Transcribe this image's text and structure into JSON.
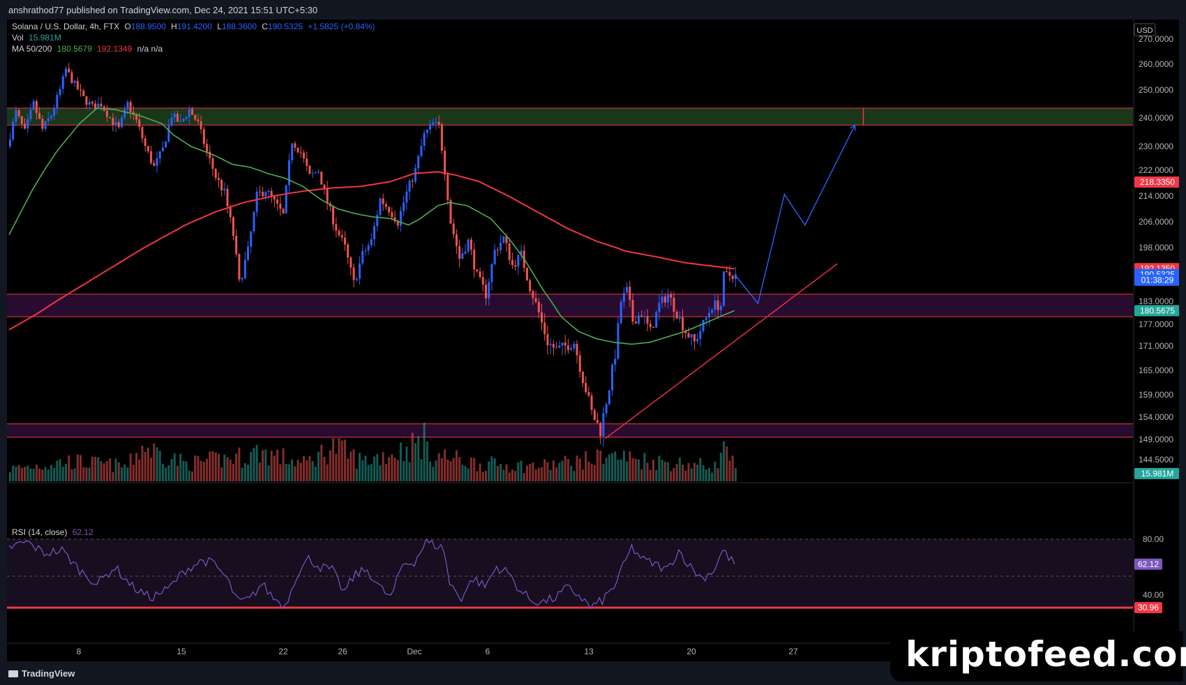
{
  "publisher": "anshrathod77 published on TradingView.com, Dec 24, 2021 15:51 UTC+5:30",
  "legend": {
    "symbol": "Solana / U.S. Dollar, 4h, FTX",
    "o_label": "O",
    "o_value": "188.9500",
    "h_label": "H",
    "h_value": "191.4200",
    "l_label": "L",
    "l_value": "188.3600",
    "c_label": "C",
    "c_value": "190.5325",
    "change": "+1.5825 (+0.84%)",
    "vol_label": "Vol",
    "vol_value": "15.981M",
    "ma_label": "MA 50/200",
    "ma50_value": "180.5679",
    "ma200_value": "192.1349",
    "ma_na": "n/a n/a",
    "rsi_label": "RSI (14, close)",
    "rsi_value": "62.12"
  },
  "currency": "USD",
  "brand": "TradingView",
  "watermark": "kriptofeed.com",
  "colors": {
    "up": "#26a69a",
    "up_candle": "#2962ff",
    "down": "#ef5350",
    "ma50": "#4caf50",
    "ma200": "#f23645",
    "rsi": "#7e57c2",
    "zone_green": "#1b3a1b",
    "zone_purple": "#2a0d33",
    "projection": "#2962ff"
  },
  "chart_data": {
    "type": "candlestick",
    "timeframe": "4h",
    "x_labels": [
      "8",
      "15",
      "22",
      "26",
      "Dec",
      "6",
      "13",
      "20",
      "27"
    ],
    "y_ticks": [
      "270.0000",
      "260.0000",
      "250.0000",
      "240.0000",
      "230.0000",
      "222.0000",
      "214.0000",
      "206.0000",
      "198.0000",
      "183.0000",
      "177.0000",
      "171.0000",
      "165.0000",
      "159.0000",
      "154.0000",
      "149.0000",
      "144.5000"
    ],
    "price_tags": [
      {
        "label": "218.3350",
        "value": 218.335,
        "color": "#f23645"
      },
      {
        "label": "192.1350",
        "value": 192.135,
        "color": "#f23645"
      },
      {
        "label": "190.5325",
        "value": 190.5325,
        "color": "#2962ff"
      },
      {
        "label": "01:38:29",
        "value": 188.9,
        "color": "#2962ff"
      },
      {
        "label": "180.5675",
        "value": 180.5675,
        "color": "#26a69a"
      },
      {
        "label": "15.981M",
        "value": 141.4,
        "color": "#26a69a"
      }
    ],
    "rsi": {
      "ticks": [
        "80.00",
        "40.00"
      ],
      "tags": [
        {
          "label": "62.12",
          "color": "#7e57c2"
        },
        {
          "label": "30.96",
          "color": "#f23645"
        }
      ]
    },
    "zones": [
      {
        "name": "resistance",
        "low": 237.5,
        "high": 243.5
      },
      {
        "name": "support",
        "low": 179.0,
        "high": 185.0
      },
      {
        "name": "demand",
        "low": 149.5,
        "high": 152.5
      }
    ],
    "ma_keys": {
      "ma50": [
        [
          0,
          202
        ],
        [
          8,
          216
        ],
        [
          16,
          228
        ],
        [
          24,
          238
        ],
        [
          30,
          243.5
        ],
        [
          36,
          243
        ],
        [
          44,
          241
        ],
        [
          52,
          238
        ],
        [
          56,
          234
        ],
        [
          62,
          230
        ],
        [
          70,
          227
        ],
        [
          76,
          224
        ],
        [
          82,
          223
        ],
        [
          88,
          221
        ],
        [
          94,
          219.5
        ],
        [
          100,
          217
        ],
        [
          106,
          213
        ],
        [
          112,
          210
        ],
        [
          118,
          208.5
        ],
        [
          124,
          207.5
        ],
        [
          130,
          207
        ],
        [
          136,
          205
        ],
        [
          140,
          207
        ],
        [
          146,
          211
        ],
        [
          150,
          212
        ],
        [
          156,
          211
        ],
        [
          164,
          207
        ],
        [
          170,
          201
        ],
        [
          176,
          194
        ],
        [
          182,
          186
        ],
        [
          188,
          179
        ],
        [
          194,
          175
        ],
        [
          200,
          173
        ],
        [
          206,
          172
        ],
        [
          212,
          171.5
        ],
        [
          218,
          172
        ],
        [
          224,
          173.5
        ],
        [
          230,
          175
        ],
        [
          236,
          177
        ],
        [
          242,
          179
        ],
        [
          247,
          180.6
        ]
      ],
      "ma200": [
        [
          0,
          175.5
        ],
        [
          10,
          180
        ],
        [
          20,
          185
        ],
        [
          30,
          190
        ],
        [
          40,
          195
        ],
        [
          50,
          200
        ],
        [
          60,
          205
        ],
        [
          70,
          209
        ],
        [
          80,
          212
        ],
        [
          90,
          214
        ],
        [
          100,
          215.5
        ],
        [
          110,
          216.5
        ],
        [
          120,
          217
        ],
        [
          130,
          218.5
        ],
        [
          138,
          221
        ],
        [
          146,
          221.5
        ],
        [
          152,
          220.5
        ],
        [
          160,
          218.5
        ],
        [
          170,
          214
        ],
        [
          180,
          209
        ],
        [
          190,
          204
        ],
        [
          200,
          200
        ],
        [
          210,
          197
        ],
        [
          220,
          195.5
        ],
        [
          230,
          193.8
        ],
        [
          240,
          192.8
        ],
        [
          247,
          192.1
        ]
      ]
    },
    "candle_keys": [
      [
        0,
        230
      ],
      [
        3,
        242
      ],
      [
        6,
        235
      ],
      [
        9,
        245
      ],
      [
        12,
        236
      ],
      [
        15,
        241
      ],
      [
        18,
        250
      ],
      [
        20,
        258
      ],
      [
        23,
        252
      ],
      [
        26,
        247
      ],
      [
        29,
        244
      ],
      [
        32,
        245
      ],
      [
        35,
        240
      ],
      [
        38,
        236
      ],
      [
        41,
        245
      ],
      [
        44,
        239
      ],
      [
        47,
        230
      ],
      [
        50,
        223
      ],
      [
        53,
        229
      ],
      [
        56,
        241
      ],
      [
        59,
        238
      ],
      [
        62,
        243
      ],
      [
        65,
        238
      ],
      [
        68,
        228
      ],
      [
        71,
        220
      ],
      [
        74,
        215
      ],
      [
        77,
        202
      ],
      [
        79,
        188
      ],
      [
        82,
        197
      ],
      [
        85,
        214
      ],
      [
        88,
        216
      ],
      [
        91,
        212
      ],
      [
        94,
        208
      ],
      [
        97,
        232
      ],
      [
        100,
        228
      ],
      [
        103,
        220
      ],
      [
        106,
        222
      ],
      [
        109,
        212
      ],
      [
        112,
        204
      ],
      [
        115,
        198
      ],
      [
        118,
        188
      ],
      [
        121,
        196
      ],
      [
        124,
        200
      ],
      [
        127,
        213
      ],
      [
        130,
        210
      ],
      [
        133,
        206
      ],
      [
        136,
        215
      ],
      [
        139,
        222
      ],
      [
        142,
        234
      ],
      [
        145,
        238
      ],
      [
        147,
        237
      ],
      [
        149,
        222
      ],
      [
        151,
        206
      ],
      [
        154,
        195
      ],
      [
        157,
        200
      ],
      [
        160,
        190
      ],
      [
        163,
        185
      ],
      [
        166,
        197
      ],
      [
        169,
        201
      ],
      [
        172,
        193
      ],
      [
        175,
        196
      ],
      [
        178,
        187
      ],
      [
        181,
        180
      ],
      [
        184,
        172
      ],
      [
        187,
        170
      ],
      [
        190,
        171
      ],
      [
        193,
        172
      ],
      [
        196,
        163
      ],
      [
        199,
        155
      ],
      [
        202,
        151
      ],
      [
        205,
        161
      ],
      [
        207,
        169
      ],
      [
        209,
        183
      ],
      [
        211,
        186
      ],
      [
        213,
        178
      ],
      [
        216,
        180
      ],
      [
        219,
        175
      ],
      [
        222,
        182
      ],
      [
        225,
        185
      ],
      [
        228,
        180
      ],
      [
        231,
        175
      ],
      [
        234,
        172
      ],
      [
        237,
        177
      ],
      [
        240,
        182
      ],
      [
        243,
        182
      ],
      [
        244,
        190
      ],
      [
        247,
        190.5
      ]
    ],
    "volume_keys": [
      [
        0,
        5
      ],
      [
        20,
        8
      ],
      [
        40,
        6
      ],
      [
        45,
        14
      ],
      [
        60,
        7
      ],
      [
        80,
        10
      ],
      [
        85,
        12
      ],
      [
        100,
        7
      ],
      [
        110,
        14
      ],
      [
        120,
        8
      ],
      [
        135,
        13
      ],
      [
        140,
        16
      ],
      [
        141,
        20
      ],
      [
        142,
        11
      ],
      [
        160,
        7
      ],
      [
        180,
        6
      ],
      [
        200,
        9
      ],
      [
        202,
        12
      ],
      [
        205,
        10
      ],
      [
        220,
        8
      ],
      [
        240,
        6
      ],
      [
        244,
        14
      ],
      [
        247,
        4
      ]
    ],
    "rsi_keys": [
      [
        0,
        74
      ],
      [
        6,
        78
      ],
      [
        12,
        70
      ],
      [
        18,
        72
      ],
      [
        24,
        58
      ],
      [
        30,
        48
      ],
      [
        36,
        60
      ],
      [
        42,
        46
      ],
      [
        48,
        38
      ],
      [
        54,
        44
      ],
      [
        60,
        58
      ],
      [
        66,
        65
      ],
      [
        70,
        62
      ],
      [
        74,
        52
      ],
      [
        78,
        35
      ],
      [
        82,
        37
      ],
      [
        86,
        48
      ],
      [
        90,
        38
      ],
      [
        94,
        32
      ],
      [
        98,
        55
      ],
      [
        102,
        66
      ],
      [
        106,
        60
      ],
      [
        110,
        58
      ],
      [
        114,
        42
      ],
      [
        118,
        55
      ],
      [
        122,
        58
      ],
      [
        126,
        46
      ],
      [
        130,
        38
      ],
      [
        134,
        62
      ],
      [
        138,
        64
      ],
      [
        142,
        78
      ],
      [
        146,
        75
      ],
      [
        148,
        73
      ],
      [
        150,
        48
      ],
      [
        154,
        38
      ],
      [
        158,
        52
      ],
      [
        162,
        46
      ],
      [
        166,
        60
      ],
      [
        170,
        56
      ],
      [
        174,
        43
      ],
      [
        178,
        36
      ],
      [
        182,
        35
      ],
      [
        186,
        38
      ],
      [
        190,
        45
      ],
      [
        194,
        40
      ],
      [
        198,
        31
      ],
      [
        202,
        36
      ],
      [
        206,
        46
      ],
      [
        209,
        60
      ],
      [
        212,
        74
      ],
      [
        216,
        65
      ],
      [
        220,
        62
      ],
      [
        224,
        58
      ],
      [
        228,
        72
      ],
      [
        232,
        60
      ],
      [
        236,
        52
      ],
      [
        240,
        58
      ],
      [
        243,
        72
      ],
      [
        247,
        62.12
      ]
    ],
    "trendline": {
      "from": [
        203,
        149.2
      ],
      "to": [
        282,
        193.5
      ]
    },
    "projection": [
      [
        247,
        190.5
      ],
      [
        255,
        182.5
      ],
      [
        264,
        214.5
      ],
      [
        271,
        205
      ],
      [
        288,
        237.5
      ]
    ]
  }
}
